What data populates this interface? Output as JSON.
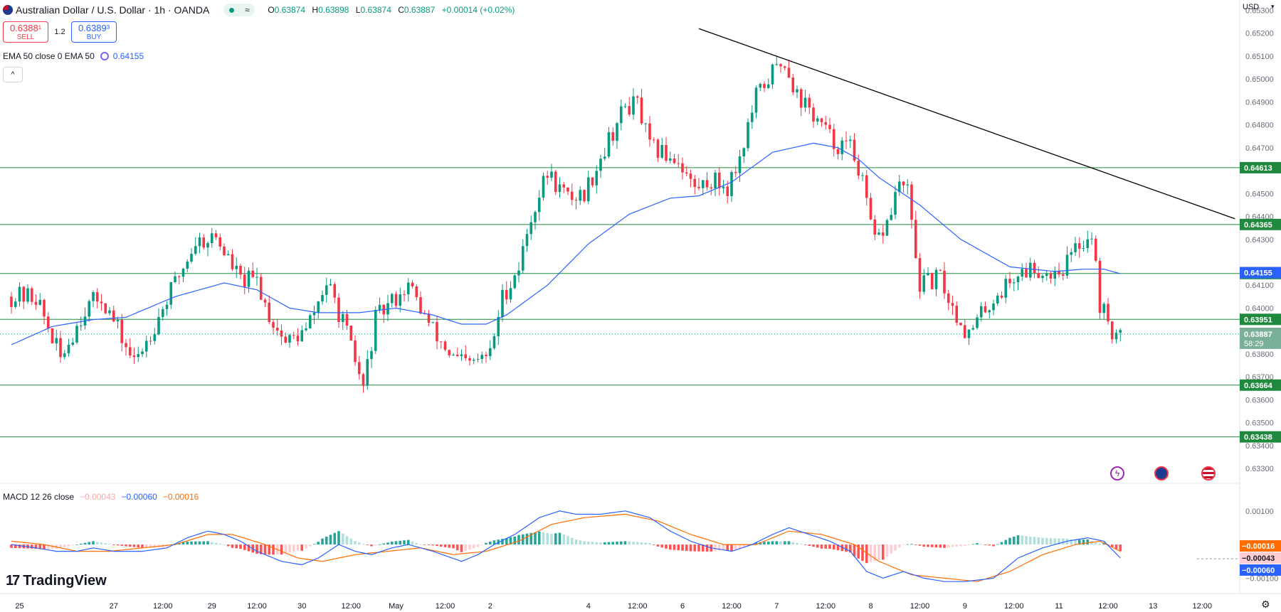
{
  "header": {
    "title": "Australian Dollar / U.S. Dollar · 1h · OANDA",
    "ohlc": {
      "o_label": "O",
      "o": "0.63874",
      "h_label": "H",
      "h": "0.63898",
      "l_label": "L",
      "l": "0.63874",
      "c_label": "C",
      "c": "0.63887",
      "change": "+0.00014 (+0.02%)"
    },
    "mode_icon": "≈"
  },
  "trade": {
    "sell_price": "0.6388¹",
    "sell_label": "SELL",
    "buy_price": "0.6389³",
    "buy_label": "BUY",
    "spread": "1.2"
  },
  "ema_legend": {
    "label": "EMA 50 close 0 EMA 50",
    "value": "0.64155"
  },
  "collapse_icon": "^",
  "macd_legend": {
    "label": "MACD 12 26 close",
    "hist": "−0.00043",
    "macd": "−0.00060",
    "signal": "−0.00016"
  },
  "branding": {
    "logo_mark": "17",
    "name": "TradingView"
  },
  "currency": {
    "label": "USD",
    "caret": "▾"
  },
  "settings_icon": "⚙",
  "colors": {
    "up": "#26a69a",
    "down": "#ef5350",
    "candle_up": "#089981",
    "candle_down": "#f23645",
    "ema": "#2962ff",
    "macd": "#2962ff",
    "signal": "#ff6d00",
    "level": "#1f8a3d",
    "trendline": "#000000"
  },
  "chart_data": {
    "type": "candlestick",
    "timeframe": "1h",
    "y_ticks": [
      "0.65300",
      "0.65200",
      "0.65100",
      "0.65000",
      "0.64900",
      "0.64800",
      "0.64700",
      "0.64500",
      "0.64400",
      "0.64300",
      "0.64100",
      "0.64000",
      "0.63800",
      "0.63700",
      "0.63600",
      "0.63500",
      "0.63400",
      "0.63300"
    ],
    "ylim": [
      0.6326,
      0.6532
    ],
    "x_ticks": [
      {
        "label": "25",
        "i": 2
      },
      {
        "label": "27",
        "i": 25
      },
      {
        "label": "12:00",
        "i": 37
      },
      {
        "label": "29",
        "i": 49
      },
      {
        "label": "12:00",
        "i": 60
      },
      {
        "label": "30",
        "i": 71
      },
      {
        "label": "12:00",
        "i": 83
      },
      {
        "label": "May",
        "i": 94
      },
      {
        "label": "12:00",
        "i": 106
      },
      {
        "label": "2",
        "i": 117
      },
      {
        "label": "4",
        "i": 141
      },
      {
        "label": "12:00",
        "i": 153
      },
      {
        "label": "6",
        "i": 164
      },
      {
        "label": "12:00",
        "i": 176
      },
      {
        "label": "7",
        "i": 187
      },
      {
        "label": "12:00",
        "i": 199
      },
      {
        "label": "8",
        "i": 210
      },
      {
        "label": "12:00",
        "i": 222
      },
      {
        "label": "9",
        "i": 233
      },
      {
        "label": "12:00",
        "i": 245
      },
      {
        "label": "11",
        "i": 256
      },
      {
        "label": "12:00",
        "i": 268
      },
      {
        "label": "13",
        "i": 279
      },
      {
        "label": "12:00",
        "i": 291
      }
    ],
    "levels": [
      "0.64613",
      "0.64365",
      "0.64151",
      "0.63951",
      "0.63664",
      "0.63438"
    ],
    "ema_label": "0.64155",
    "current_price": "0.63887",
    "countdown": "58:29",
    "trendline": [
      {
        "i": 168,
        "price": 0.6522
      },
      {
        "i": 299,
        "price": 0.6439
      }
    ],
    "macd_scale": {
      "ticks": [
        "0.00100",
        "0.00000",
        "−0.00100"
      ],
      "ylim": [
        -0.00135,
        0.00165
      ]
    },
    "macd_labels": {
      "signal": "−0.00016",
      "hist": "−0.00043",
      "macd": "−0.00060"
    },
    "anchors": [
      [
        0,
        0.6405
      ],
      [
        6,
        0.6405
      ],
      [
        12,
        0.6378
      ],
      [
        18,
        0.64
      ],
      [
        22,
        0.6405
      ],
      [
        30,
        0.6376
      ],
      [
        35,
        0.6393
      ],
      [
        40,
        0.6411
      ],
      [
        45,
        0.6429
      ],
      [
        50,
        0.6431
      ],
      [
        56,
        0.6412
      ],
      [
        60,
        0.6412
      ],
      [
        63,
        0.6397
      ],
      [
        67,
        0.6385
      ],
      [
        72,
        0.639
      ],
      [
        77,
        0.6411
      ],
      [
        81,
        0.6394
      ],
      [
        86,
        0.6365
      ],
      [
        89,
        0.6395
      ],
      [
        94,
        0.6405
      ],
      [
        97,
        0.641
      ],
      [
        103,
        0.639
      ],
      [
        108,
        0.6378
      ],
      [
        112,
        0.6375
      ],
      [
        117,
        0.638
      ],
      [
        120,
        0.6405
      ],
      [
        124,
        0.6418
      ],
      [
        127,
        0.644
      ],
      [
        131,
        0.6459
      ],
      [
        136,
        0.6448
      ],
      [
        140,
        0.645
      ],
      [
        145,
        0.647
      ],
      [
        150,
        0.6488
      ],
      [
        153,
        0.6489
      ],
      [
        156,
        0.647
      ],
      [
        163,
        0.6465
      ],
      [
        167,
        0.6452
      ],
      [
        171,
        0.6456
      ],
      [
        175,
        0.6453
      ],
      [
        178,
        0.6466
      ],
      [
        182,
        0.6492
      ],
      [
        186,
        0.6503
      ],
      [
        189,
        0.6508
      ],
      [
        192,
        0.6493
      ],
      [
        197,
        0.6482
      ],
      [
        201,
        0.6472
      ],
      [
        205,
        0.647
      ],
      [
        207,
        0.6462
      ],
      [
        209,
        0.6445
      ],
      [
        211,
        0.6428
      ],
      [
        214,
        0.6437
      ],
      [
        217,
        0.6455
      ],
      [
        219,
        0.645
      ],
      [
        222,
        0.641
      ],
      [
        227,
        0.6413
      ],
      [
        230,
        0.64
      ],
      [
        234,
        0.6388
      ],
      [
        238,
        0.64
      ],
      [
        242,
        0.6408
      ],
      [
        246,
        0.6415
      ],
      [
        250,
        0.6418
      ],
      [
        253,
        0.6415
      ],
      [
        257,
        0.6418
      ],
      [
        261,
        0.6428
      ],
      [
        264,
        0.6433
      ],
      [
        266,
        0.6402
      ],
      [
        269,
        0.639
      ],
      [
        271,
        0.6386
      ]
    ],
    "ema_anchors": [
      [
        0,
        0.6384
      ],
      [
        10,
        0.6392
      ],
      [
        20,
        0.6395
      ],
      [
        28,
        0.6396
      ],
      [
        40,
        0.6405
      ],
      [
        52,
        0.6411
      ],
      [
        60,
        0.6408
      ],
      [
        68,
        0.64
      ],
      [
        75,
        0.6398
      ],
      [
        85,
        0.6398
      ],
      [
        94,
        0.64
      ],
      [
        103,
        0.6397
      ],
      [
        110,
        0.6393
      ],
      [
        116,
        0.6393
      ],
      [
        121,
        0.6397
      ],
      [
        131,
        0.641
      ],
      [
        141,
        0.6428
      ],
      [
        151,
        0.6441
      ],
      [
        161,
        0.6448
      ],
      [
        168,
        0.6449
      ],
      [
        176,
        0.6455
      ],
      [
        186,
        0.6468
      ],
      [
        196,
        0.6472
      ],
      [
        202,
        0.647
      ],
      [
        207,
        0.6465
      ],
      [
        212,
        0.6457
      ],
      [
        222,
        0.6445
      ],
      [
        232,
        0.643
      ],
      [
        244,
        0.6418
      ],
      [
        255,
        0.6416
      ],
      [
        262,
        0.6417
      ],
      [
        267,
        0.6417
      ],
      [
        271,
        0.6415
      ]
    ],
    "macd_anchors": [
      [
        0,
        0.0
      ],
      [
        6,
        -0.0001
      ],
      [
        11,
        -0.0002
      ],
      [
        16,
        -0.0002
      ],
      [
        20,
        -0.0001
      ],
      [
        25,
        -0.0002
      ],
      [
        32,
        -0.0002
      ],
      [
        38,
        -0.0001
      ],
      [
        43,
        0.0002
      ],
      [
        48,
        0.0004
      ],
      [
        52,
        0.0003
      ],
      [
        56,
        0.0001
      ],
      [
        60,
        -0.0002
      ],
      [
        66,
        -0.0005
      ],
      [
        71,
        -0.0006
      ],
      [
        75,
        -0.0004
      ],
      [
        80,
        0.0
      ],
      [
        84,
        -0.0002
      ],
      [
        88,
        -0.0003
      ],
      [
        93,
        -0.0001
      ],
      [
        97,
        0.0
      ],
      [
        103,
        -0.0002
      ],
      [
        110,
        -0.0005
      ],
      [
        114,
        -0.0003
      ],
      [
        118,
        0.0
      ],
      [
        123,
        0.0003
      ],
      [
        129,
        0.0008
      ],
      [
        134,
        0.001
      ],
      [
        138,
        0.0009
      ],
      [
        144,
        0.0009
      ],
      [
        150,
        0.001
      ],
      [
        156,
        0.0008
      ],
      [
        161,
        0.0004
      ],
      [
        166,
        0.0001
      ],
      [
        171,
        -0.0001
      ],
      [
        176,
        -0.0002
      ],
      [
        181,
        0.0
      ],
      [
        186,
        0.0003
      ],
      [
        190,
        0.0005
      ],
      [
        195,
        0.0003
      ],
      [
        200,
        0.0001
      ],
      [
        205,
        -0.0002
      ],
      [
        209,
        -0.0008
      ],
      [
        213,
        -0.001
      ],
      [
        218,
        -0.0008
      ],
      [
        223,
        -0.001
      ],
      [
        228,
        -0.0011
      ],
      [
        233,
        -0.0011
      ],
      [
        240,
        -0.001
      ],
      [
        246,
        -0.0004
      ],
      [
        252,
        -0.0001
      ],
      [
        258,
        0.0001
      ],
      [
        263,
        0.0002
      ],
      [
        267,
        0.0001
      ],
      [
        271,
        -0.0004
      ]
    ],
    "signal_anchors": [
      [
        0,
        0.0001
      ],
      [
        8,
        0.0
      ],
      [
        16,
        -0.0002
      ],
      [
        24,
        -0.0002
      ],
      [
        32,
        -0.0001
      ],
      [
        40,
        0.0
      ],
      [
        48,
        0.0003
      ],
      [
        54,
        0.0003
      ],
      [
        62,
        0.0
      ],
      [
        70,
        -0.0004
      ],
      [
        76,
        -0.0005
      ],
      [
        84,
        -0.0003
      ],
      [
        92,
        -0.0002
      ],
      [
        100,
        -0.0001
      ],
      [
        108,
        -0.0003
      ],
      [
        116,
        -0.0002
      ],
      [
        124,
        0.0001
      ],
      [
        132,
        0.0006
      ],
      [
        140,
        0.0008
      ],
      [
        150,
        0.0009
      ],
      [
        158,
        0.0007
      ],
      [
        166,
        0.0003
      ],
      [
        174,
        0.0
      ],
      [
        182,
        0.0
      ],
      [
        190,
        0.0004
      ],
      [
        198,
        0.0003
      ],
      [
        206,
        0.0
      ],
      [
        212,
        -0.0005
      ],
      [
        220,
        -0.0009
      ],
      [
        228,
        -0.001
      ],
      [
        236,
        -0.0011
      ],
      [
        244,
        -0.0008
      ],
      [
        252,
        -0.0003
      ],
      [
        260,
        0.0
      ],
      [
        266,
        0.0001
      ],
      [
        271,
        -0.0002
      ]
    ]
  }
}
